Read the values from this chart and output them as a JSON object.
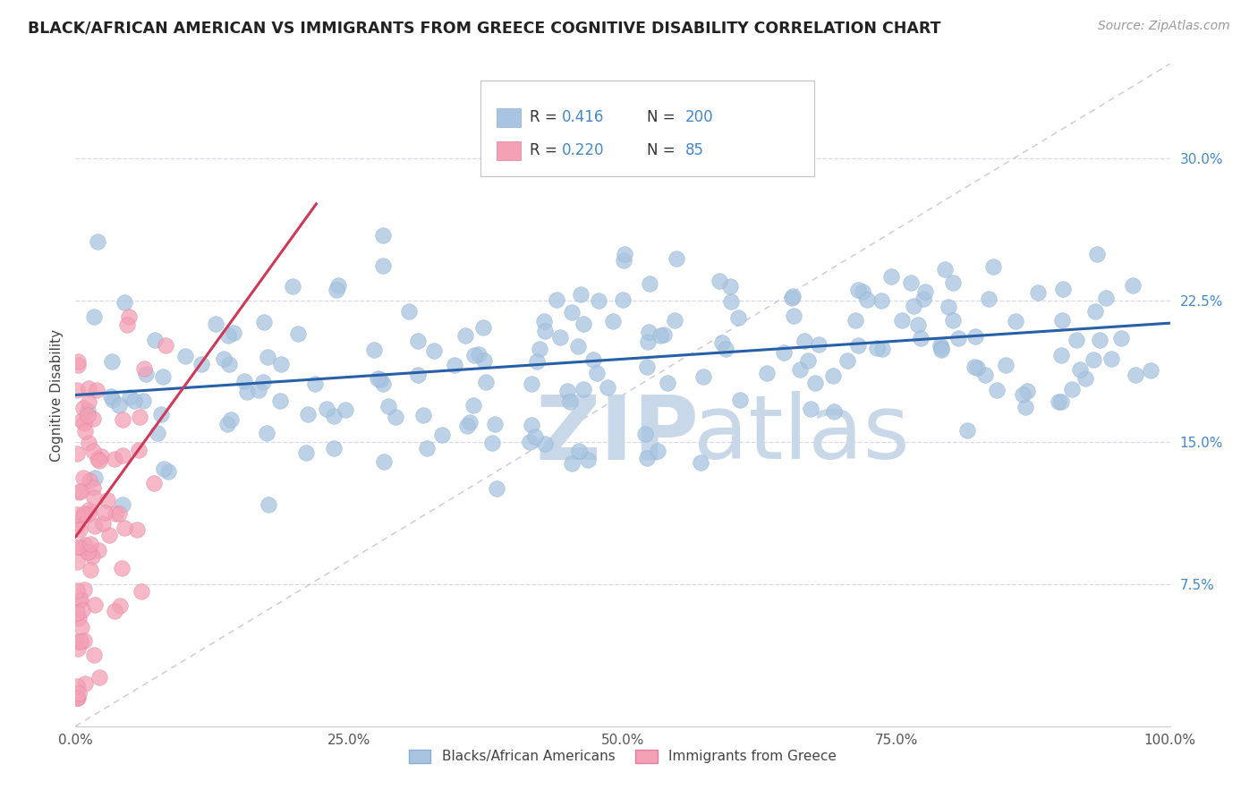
{
  "title": "BLACK/AFRICAN AMERICAN VS IMMIGRANTS FROM GREECE COGNITIVE DISABILITY CORRELATION CHART",
  "source": "Source: ZipAtlas.com",
  "ylabel": "Cognitive Disability",
  "xlim": [
    0.0,
    1.0
  ],
  "ylim": [
    0.0,
    0.35
  ],
  "yticks": [
    0.075,
    0.15,
    0.225,
    0.3
  ],
  "ytick_labels": [
    "7.5%",
    "15.0%",
    "22.5%",
    "30.0%"
  ],
  "xticks": [
    0.0,
    0.25,
    0.5,
    0.75,
    1.0
  ],
  "xtick_labels": [
    "0.0%",
    "25.0%",
    "50.0%",
    "75.0%",
    "100.0%"
  ],
  "blue_R": 0.416,
  "blue_N": 200,
  "pink_R": 0.22,
  "pink_N": 85,
  "blue_color": "#a8c4e0",
  "pink_color": "#f4a0b5",
  "blue_line_color": "#2860a8",
  "pink_line_color": "#d03858",
  "diagonal_color": "#c8c8d8",
  "title_color": "#222222",
  "axis_label_color": "#4488cc",
  "watermark_zip": "ZIP",
  "watermark_atlas": "atlas",
  "watermark_color": "#c8d8e8",
  "background_color": "#ffffff",
  "grid_color": "#d8d8e8",
  "seed": 7
}
